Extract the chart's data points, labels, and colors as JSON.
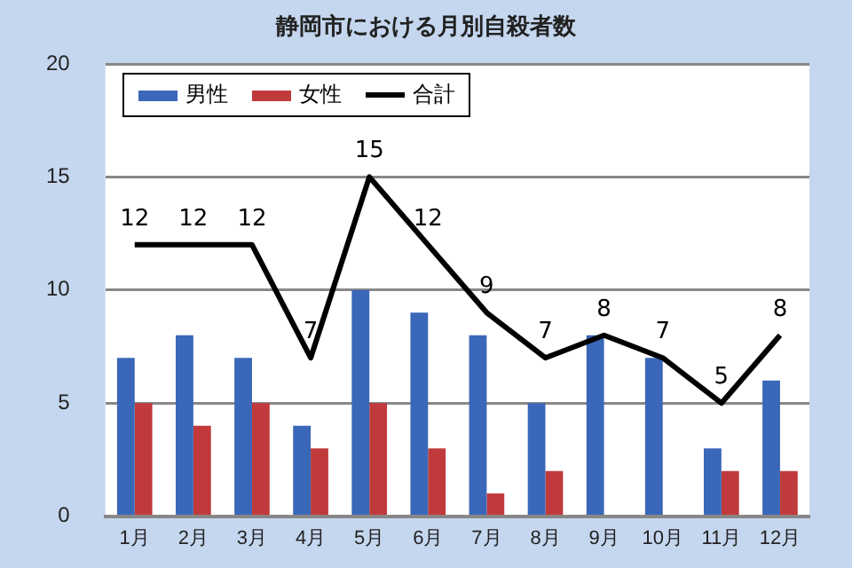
{
  "chart_data": {
    "type": "bar",
    "title": "静岡市における月別自殺者数",
    "categories": [
      "1月",
      "2月",
      "3月",
      "4月",
      "5月",
      "6月",
      "7月",
      "8月",
      "9月",
      "10月",
      "11月",
      "12月"
    ],
    "series": [
      {
        "name": "男性",
        "color": "#3a67b8",
        "values": [
          7,
          8,
          7,
          4,
          10,
          9,
          8,
          5,
          8,
          7,
          3,
          6
        ]
      },
      {
        "name": "女性",
        "color": "#c0393b",
        "values": [
          5,
          4,
          5,
          3,
          5,
          3,
          1,
          2,
          0,
          0,
          2,
          2
        ]
      },
      {
        "name": "合計",
        "type": "line",
        "color": "#000000",
        "values": [
          12,
          12,
          12,
          7,
          15,
          12,
          9,
          7,
          8,
          7,
          5,
          8
        ],
        "value_labels": [
          "12",
          "12",
          "12",
          "7",
          "15",
          "12",
          "9",
          "7",
          "8",
          "7",
          "5",
          "8"
        ]
      }
    ],
    "ylim": [
      0,
      20
    ],
    "yticks": [
      0,
      5,
      10,
      15,
      20
    ],
    "grid": "y",
    "legend": "top left",
    "marker": "none"
  }
}
